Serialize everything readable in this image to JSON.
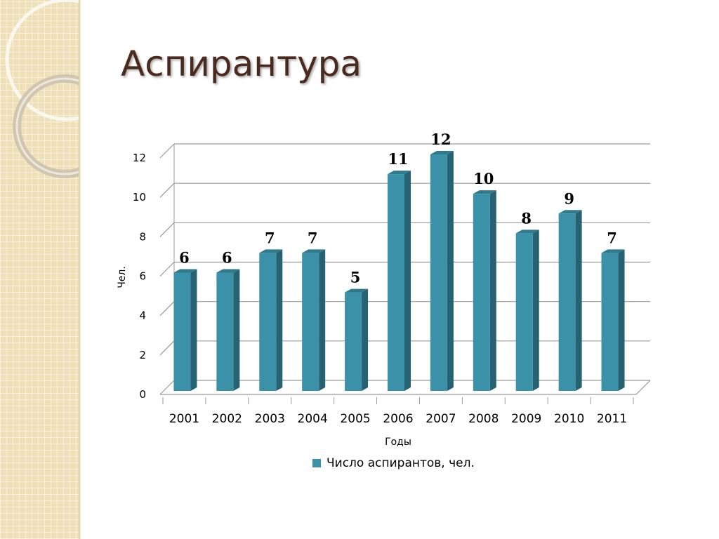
{
  "slide": {
    "title": "Аспирантура"
  },
  "colors": {
    "bar_front": "#3b91a7",
    "bar_side": "#276273",
    "bar_top": "#2f7a8c",
    "title": "#4a2a1c",
    "strip": "#efe0b8"
  },
  "chart_data": {
    "type": "bar",
    "style": "3d-column",
    "categories": [
      "2001",
      "2002",
      "2003",
      "2004",
      "2005",
      "2006",
      "2007",
      "2008",
      "2009",
      "2010",
      "2011"
    ],
    "series": [
      {
        "name": "Число аспирантов, чел.",
        "values": [
          6,
          6,
          7,
          7,
          5,
          11,
          12,
          10,
          8,
          9,
          7
        ]
      }
    ],
    "data_labels": [
      "6",
      "6",
      "7",
      "7",
      "5",
      "11",
      "12",
      "10",
      "8",
      "9",
      "7"
    ],
    "xlabel": "Годы",
    "ylabel": "Чел.",
    "ylim": [
      0,
      12
    ],
    "yticks": [
      0,
      2,
      4,
      6,
      8,
      10,
      12
    ],
    "ytick_labels": [
      "0",
      "2",
      "4",
      "6",
      "8",
      "10",
      "12"
    ],
    "grid": true,
    "legend": "bottom"
  }
}
